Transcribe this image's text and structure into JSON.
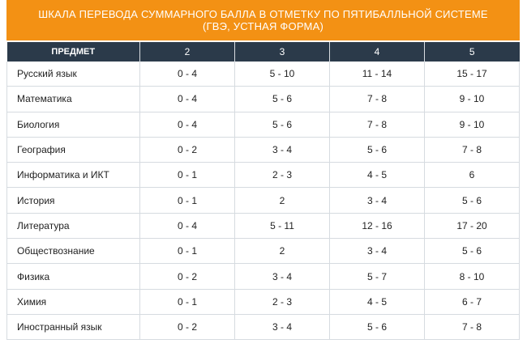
{
  "title": {
    "line1": "ШКАЛА ПЕРЕВОДА СУММАРНОГО БАЛЛА В ОТМЕТКУ ПО ПЯТИБАЛЛЬНОЙ СИСТЕМЕ",
    "line2": "(ГВЭ, УСТНАЯ ФОРМА)"
  },
  "table": {
    "headers": [
      "ПРЕДМЕТ",
      "2",
      "3",
      "4",
      "5"
    ],
    "rows": [
      [
        "Русский язык",
        "0 - 4",
        "5 - 10",
        "11 - 14",
        "15 - 17"
      ],
      [
        "Математика",
        "0 - 4",
        "5 - 6",
        "7 - 8",
        "9 - 10"
      ],
      [
        "Биология",
        "0 - 4",
        "5 - 6",
        "7 - 8",
        "9 - 10"
      ],
      [
        "География",
        "0 - 2",
        "3 - 4",
        "5 - 6",
        "7 - 8"
      ],
      [
        "Информатика и ИКТ",
        "0 - 1",
        "2 - 3",
        "4 - 5",
        "6"
      ],
      [
        "История",
        "0 - 1",
        "2",
        "3 - 4",
        "5 - 6"
      ],
      [
        "Литература",
        "0 - 4",
        "5 - 11",
        "12 - 16",
        "17 - 20"
      ],
      [
        "Обществознание",
        "0 - 1",
        "2",
        "3 - 4",
        "5 - 6"
      ],
      [
        "Физика",
        "0 - 2",
        "3 - 4",
        "5 - 7",
        "8 - 10"
      ],
      [
        "Химия",
        "0 - 1",
        "2 - 3",
        "4 - 5",
        "6 - 7"
      ],
      [
        "Иностранный язык",
        "0 - 2",
        "3 - 4",
        "5 - 6",
        "7 - 8"
      ]
    ]
  },
  "colors": {
    "title_bg": "#f39114",
    "header_bg": "#2b3a4a",
    "border": "#d6dbe0"
  }
}
